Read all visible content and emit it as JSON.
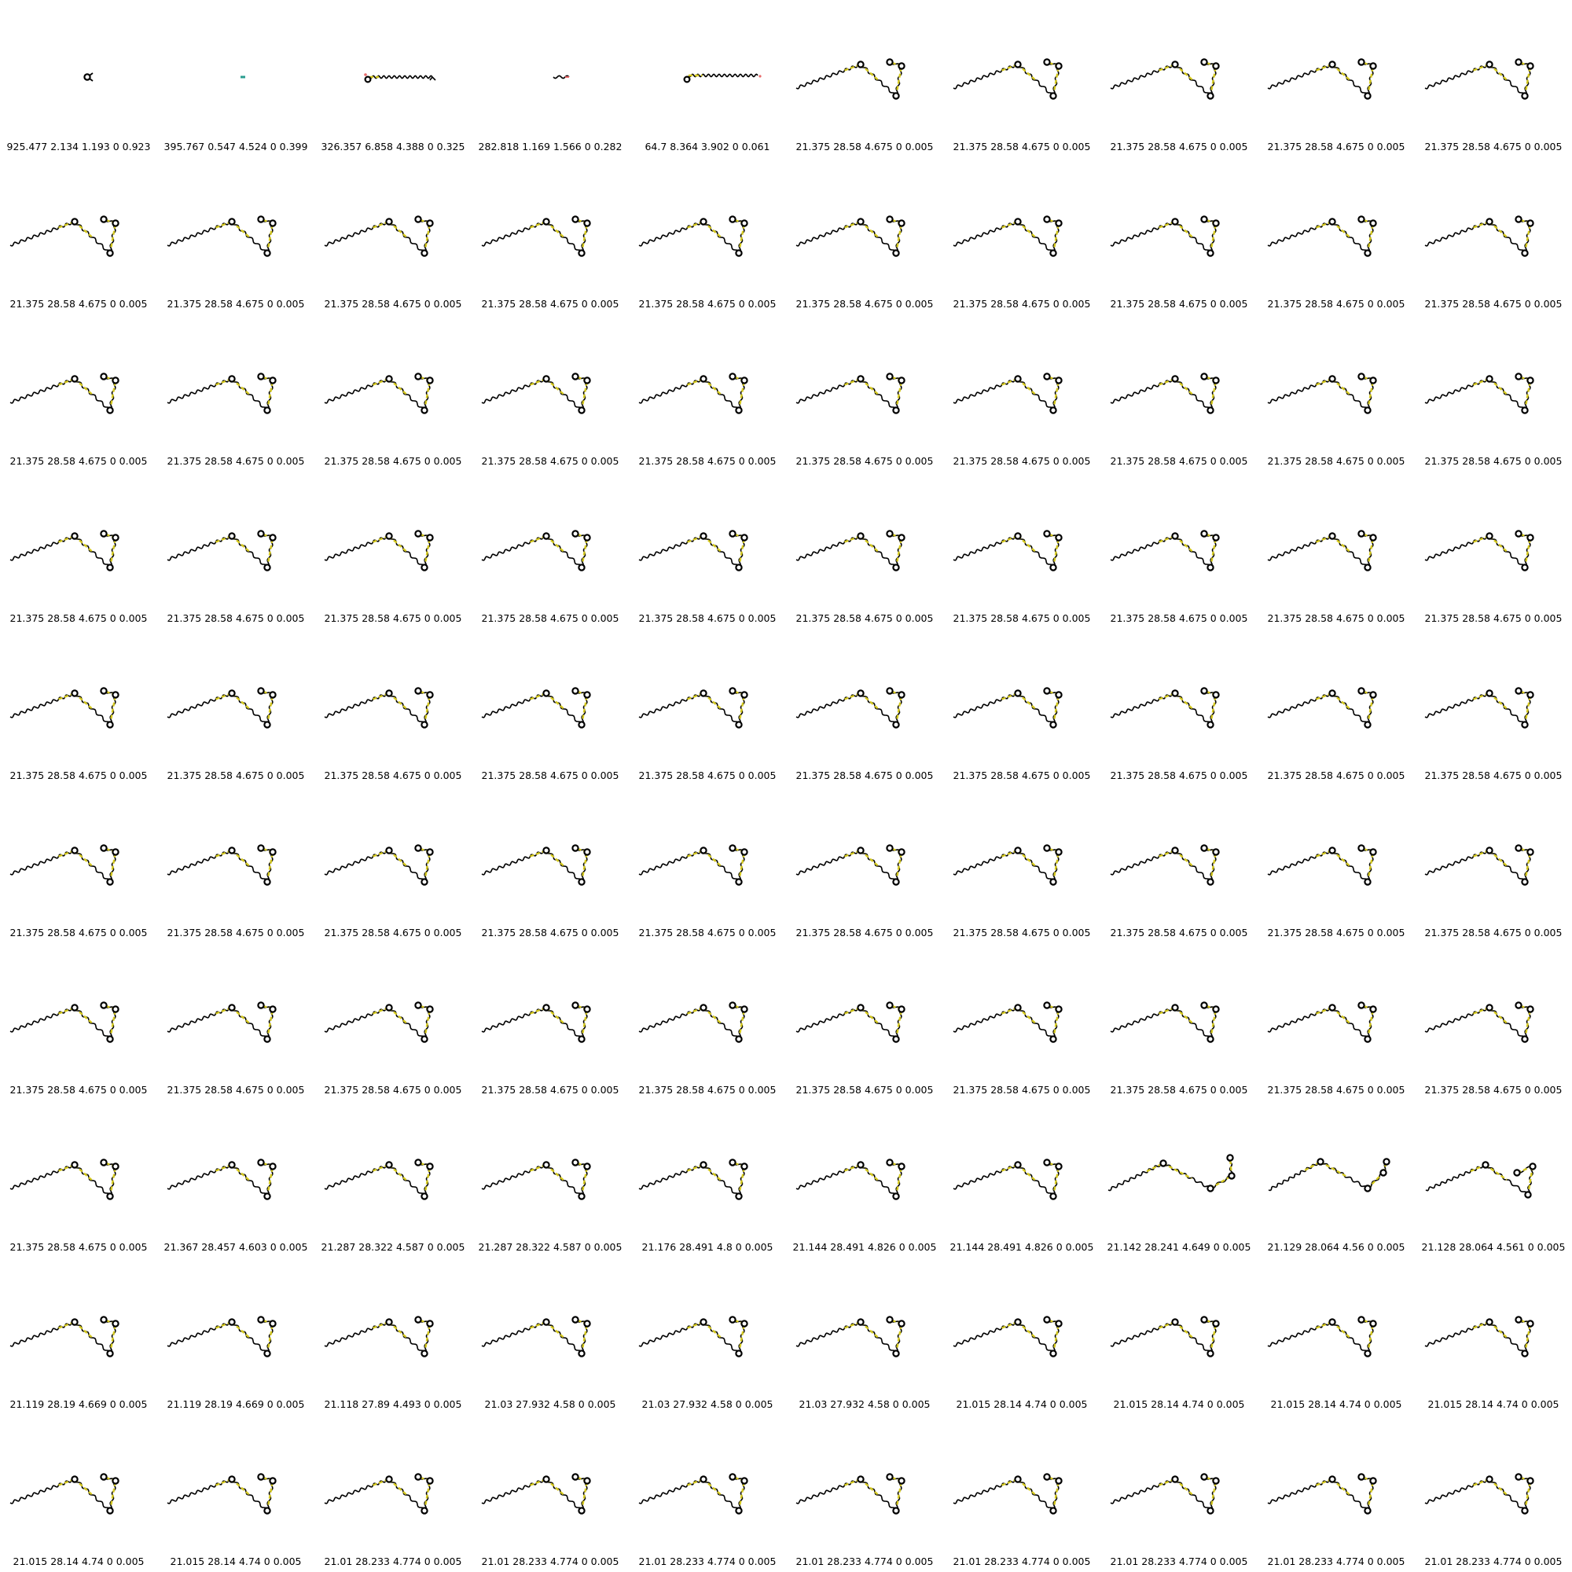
{
  "colors": {
    "backbone": "#000000",
    "highlight": "#d4c81e",
    "ring": "#000000",
    "accent_red": "#e86a6a",
    "accent_teal": "#2a9d8f"
  },
  "panels": [
    {
      "label": "925.477 2.134 1.193 0 0.923",
      "shape": "tiny-ring"
    },
    {
      "label": "395.767 0.547 4.524 0 0.399",
      "shape": "tiny-dot"
    },
    {
      "label": "326.357 6.858 4.388 0 0.325",
      "shape": "flat-chain"
    },
    {
      "label": "282.818 1.169 1.566 0 0.282",
      "shape": "short-wave"
    },
    {
      "label": "64.7 8.364 3.902 0 0.061",
      "shape": "flat-chain-2"
    },
    {
      "label": "21.375 28.58 4.675 0 0.005",
      "shape": "standard"
    },
    {
      "label": "21.375 28.58 4.675 0 0.005",
      "shape": "standard"
    },
    {
      "label": "21.375 28.58 4.675 0 0.005",
      "shape": "standard"
    },
    {
      "label": "21.375 28.58 4.675 0 0.005",
      "shape": "standard"
    },
    {
      "label": "21.375 28.58 4.675 0 0.005",
      "shape": "standard"
    },
    {
      "label": "21.375 28.58 4.675 0 0.005",
      "shape": "standard"
    },
    {
      "label": "21.375 28.58 4.675 0 0.005",
      "shape": "standard"
    },
    {
      "label": "21.375 28.58 4.675 0 0.005",
      "shape": "standard"
    },
    {
      "label": "21.375 28.58 4.675 0 0.005",
      "shape": "standard"
    },
    {
      "label": "21.375 28.58 4.675 0 0.005",
      "shape": "standard"
    },
    {
      "label": "21.375 28.58 4.675 0 0.005",
      "shape": "standard"
    },
    {
      "label": "21.375 28.58 4.675 0 0.005",
      "shape": "standard"
    },
    {
      "label": "21.375 28.58 4.675 0 0.005",
      "shape": "standard"
    },
    {
      "label": "21.375 28.58 4.675 0 0.005",
      "shape": "standard"
    },
    {
      "label": "21.375 28.58 4.675 0 0.005",
      "shape": "standard"
    },
    {
      "label": "21.375 28.58 4.675 0 0.005",
      "shape": "standard"
    },
    {
      "label": "21.375 28.58 4.675 0 0.005",
      "shape": "standard"
    },
    {
      "label": "21.375 28.58 4.675 0 0.005",
      "shape": "standard"
    },
    {
      "label": "21.375 28.58 4.675 0 0.005",
      "shape": "standard"
    },
    {
      "label": "21.375 28.58 4.675 0 0.005",
      "shape": "standard"
    },
    {
      "label": "21.375 28.58 4.675 0 0.005",
      "shape": "standard"
    },
    {
      "label": "21.375 28.58 4.675 0 0.005",
      "shape": "standard"
    },
    {
      "label": "21.375 28.58 4.675 0 0.005",
      "shape": "standard"
    },
    {
      "label": "21.375 28.58 4.675 0 0.005",
      "shape": "standard"
    },
    {
      "label": "21.375 28.58 4.675 0 0.005",
      "shape": "standard"
    },
    {
      "label": "21.375 28.58 4.675 0 0.005",
      "shape": "standard"
    },
    {
      "label": "21.375 28.58 4.675 0 0.005",
      "shape": "standard"
    },
    {
      "label": "21.375 28.58 4.675 0 0.005",
      "shape": "standard"
    },
    {
      "label": "21.375 28.58 4.675 0 0.005",
      "shape": "standard"
    },
    {
      "label": "21.375 28.58 4.675 0 0.005",
      "shape": "standard"
    },
    {
      "label": "21.375 28.58 4.675 0 0.005",
      "shape": "standard"
    },
    {
      "label": "21.375 28.58 4.675 0 0.005",
      "shape": "standard"
    },
    {
      "label": "21.375 28.58 4.675 0 0.005",
      "shape": "standard"
    },
    {
      "label": "21.375 28.58 4.675 0 0.005",
      "shape": "standard"
    },
    {
      "label": "21.375 28.58 4.675 0 0.005",
      "shape": "standard"
    },
    {
      "label": "21.375 28.58 4.675 0 0.005",
      "shape": "standard"
    },
    {
      "label": "21.375 28.58 4.675 0 0.005",
      "shape": "standard"
    },
    {
      "label": "21.375 28.58 4.675 0 0.005",
      "shape": "standard"
    },
    {
      "label": "21.375 28.58 4.675 0 0.005",
      "shape": "standard"
    },
    {
      "label": "21.375 28.58 4.675 0 0.005",
      "shape": "standard"
    },
    {
      "label": "21.375 28.58 4.675 0 0.005",
      "shape": "standard"
    },
    {
      "label": "21.375 28.58 4.675 0 0.005",
      "shape": "standard"
    },
    {
      "label": "21.375 28.58 4.675 0 0.005",
      "shape": "standard"
    },
    {
      "label": "21.375 28.58 4.675 0 0.005",
      "shape": "standard"
    },
    {
      "label": "21.375 28.58 4.675 0 0.005",
      "shape": "standard"
    },
    {
      "label": "21.375 28.58 4.675 0 0.005",
      "shape": "standard"
    },
    {
      "label": "21.375 28.58 4.675 0 0.005",
      "shape": "standard"
    },
    {
      "label": "21.375 28.58 4.675 0 0.005",
      "shape": "standard"
    },
    {
      "label": "21.375 28.58 4.675 0 0.005",
      "shape": "standard"
    },
    {
      "label": "21.375 28.58 4.675 0 0.005",
      "shape": "standard"
    },
    {
      "label": "21.375 28.58 4.675 0 0.005",
      "shape": "standard"
    },
    {
      "label": "21.375 28.58 4.675 0 0.005",
      "shape": "standard"
    },
    {
      "label": "21.375 28.58 4.675 0 0.005",
      "shape": "standard"
    },
    {
      "label": "21.375 28.58 4.675 0 0.005",
      "shape": "standard"
    },
    {
      "label": "21.375 28.58 4.675 0 0.005",
      "shape": "standard"
    },
    {
      "label": "21.375 28.58 4.675 0 0.005",
      "shape": "standard"
    },
    {
      "label": "21.375 28.58 4.675 0 0.005",
      "shape": "standard"
    },
    {
      "label": "21.375 28.58 4.675 0 0.005",
      "shape": "standard"
    },
    {
      "label": "21.375 28.58 4.675 0 0.005",
      "shape": "standard"
    },
    {
      "label": "21.375 28.58 4.675 0 0.005",
      "shape": "standard"
    },
    {
      "label": "21.375 28.58 4.675 0 0.005",
      "shape": "standard"
    },
    {
      "label": "21.375 28.58 4.675 0 0.005",
      "shape": "standard"
    },
    {
      "label": "21.375 28.58 4.675 0 0.005",
      "shape": "standard"
    },
    {
      "label": "21.375 28.58 4.675 0 0.005",
      "shape": "standard"
    },
    {
      "label": "21.375 28.58 4.675 0 0.005",
      "shape": "standard"
    },
    {
      "label": "21.375 28.58 4.675 0 0.005",
      "shape": "standard"
    },
    {
      "label": "21.367 28.457 4.603 0 0.005",
      "shape": "standard"
    },
    {
      "label": "21.287 28.322 4.587 0 0.005",
      "shape": "standard"
    },
    {
      "label": "21.287 28.322 4.587 0 0.005",
      "shape": "standard"
    },
    {
      "label": "21.176 28.491 4.8 0 0.005",
      "shape": "standard"
    },
    {
      "label": "21.144 28.491 4.826 0 0.005",
      "shape": "standard"
    },
    {
      "label": "21.144 28.491 4.826 0 0.005",
      "shape": "standard"
    },
    {
      "label": "21.142 28.241 4.649 0 0.005",
      "shape": "variant-a"
    },
    {
      "label": "21.129 28.064 4.56 0 0.005",
      "shape": "variant-b"
    },
    {
      "label": "21.128 28.064 4.561 0 0.005",
      "shape": "variant-c"
    },
    {
      "label": "21.119 28.19 4.669 0 0.005",
      "shape": "standard"
    },
    {
      "label": "21.119 28.19 4.669 0 0.005",
      "shape": "standard"
    },
    {
      "label": "21.118 27.89 4.493 0 0.005",
      "shape": "standard"
    },
    {
      "label": "21.03 27.932 4.58 0 0.005",
      "shape": "standard"
    },
    {
      "label": "21.03 27.932 4.58 0 0.005",
      "shape": "standard"
    },
    {
      "label": "21.03 27.932 4.58 0 0.005",
      "shape": "standard"
    },
    {
      "label": "21.015 28.14 4.74 0 0.005",
      "shape": "standard"
    },
    {
      "label": "21.015 28.14 4.74 0 0.005",
      "shape": "standard"
    },
    {
      "label": "21.015 28.14 4.74 0 0.005",
      "shape": "standard"
    },
    {
      "label": "21.015 28.14 4.74 0 0.005",
      "shape": "standard"
    },
    {
      "label": "21.015 28.14 4.74 0 0.005",
      "shape": "standard"
    },
    {
      "label": "21.015 28.14 4.74 0 0.005",
      "shape": "standard"
    },
    {
      "label": "21.01 28.233 4.774 0 0.005",
      "shape": "standard"
    },
    {
      "label": "21.01 28.233 4.774 0 0.005",
      "shape": "standard"
    },
    {
      "label": "21.01 28.233 4.774 0 0.005",
      "shape": "standard"
    },
    {
      "label": "21.01 28.233 4.774 0 0.005",
      "shape": "standard"
    },
    {
      "label": "21.01 28.233 4.774 0 0.005",
      "shape": "standard"
    },
    {
      "label": "21.01 28.233 4.774 0 0.005",
      "shape": "standard"
    },
    {
      "label": "21.01 28.233 4.774 0 0.005",
      "shape": "standard"
    },
    {
      "label": "21.01 28.233 4.774 0 0.005",
      "shape": "standard"
    }
  ]
}
